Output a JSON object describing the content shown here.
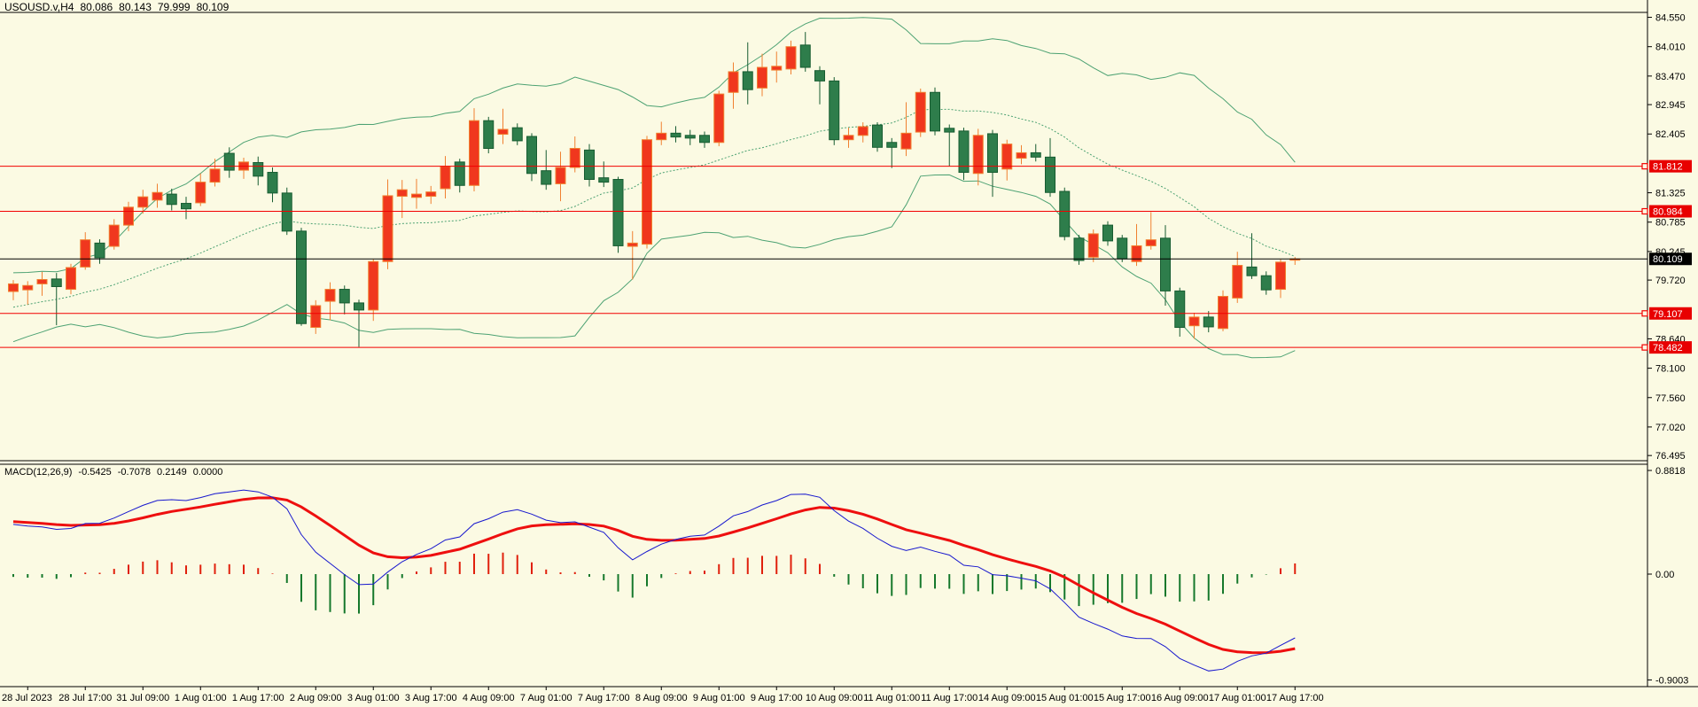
{
  "header": {
    "symbol": "USOUSD.v,H4",
    "open": "80.086",
    "high": "80.143",
    "low": "79.999",
    "close": "80.109"
  },
  "macd": {
    "name": "MACD(12,26,9)",
    "values": [
      "-0.5425",
      "-0.7078",
      "0.2149",
      "0.0000"
    ]
  },
  "colors": {
    "background": "#FBFAE3",
    "border": "#000000",
    "text": "#000000",
    "bull_fill": "#F0371E",
    "bull_border": "#F08030",
    "bear_fill": "#2E7D4B",
    "bear_border": "#175C31",
    "band_line": "#4DA273",
    "sr_line": "#F20000",
    "sr_badge_bg": "#E80000",
    "badge_text": "#FFFFFF",
    "current_line": "#000000",
    "current_badge_bg": "#000000",
    "macd_main": "#1818CE",
    "macd_signal": "#EE0F0F",
    "hist_positive": "#E0200C",
    "hist_negative": "#15782B"
  },
  "chart_data": {
    "type": "candlestick",
    "title": "USOUSD.v,H4  80.086 80.143 79.999 80.109",
    "symbol": "USOUSD.v",
    "timeframe": "H4",
    "current_bar": {
      "open": 80.086,
      "high": 80.143,
      "low": 79.999,
      "close": 80.109
    },
    "ohlc_format": [
      "open",
      "high",
      "low",
      "close"
    ],
    "price_axis": {
      "range": [
        76.4,
        84.64
      ],
      "ticks": [
        "84.550",
        "84.010",
        "83.470",
        "82.945",
        "82.405",
        "81.325",
        "80.785",
        "80.245",
        "79.720",
        "78.640",
        "78.100",
        "77.560",
        "77.020",
        "76.495"
      ],
      "tick_values": [
        84.55,
        84.01,
        83.47,
        82.945,
        82.405,
        81.325,
        80.785,
        80.245,
        79.72,
        78.64,
        78.1,
        77.56,
        77.02,
        76.495
      ]
    },
    "horizontal_lines": [
      {
        "value": 81.812,
        "label": "81.812",
        "kind": "sr"
      },
      {
        "value": 80.984,
        "label": "80.984",
        "kind": "sr"
      },
      {
        "value": 79.107,
        "label": "79.107",
        "kind": "sr"
      },
      {
        "value": 78.482,
        "label": "78.482",
        "kind": "sr"
      },
      {
        "value": 80.109,
        "label": "80.109",
        "kind": "current-price"
      }
    ],
    "bollinger": {
      "period": 20,
      "deviation": 2
    },
    "candles": [
      [
        79.51,
        79.72,
        79.35,
        79.65
      ],
      [
        79.54,
        79.7,
        79.27,
        79.62
      ],
      [
        79.65,
        79.87,
        79.43,
        79.73
      ],
      [
        79.74,
        79.85,
        78.89,
        79.6
      ],
      [
        79.55,
        80.02,
        79.46,
        79.95
      ],
      [
        79.96,
        80.6,
        79.91,
        80.46
      ],
      [
        80.4,
        80.47,
        80.02,
        80.13
      ],
      [
        80.34,
        80.84,
        80.28,
        80.73
      ],
      [
        80.73,
        81.16,
        80.62,
        81.06
      ],
      [
        81.06,
        81.38,
        80.94,
        81.25
      ],
      [
        81.19,
        81.49,
        81.05,
        81.33
      ],
      [
        81.3,
        81.4,
        81.0,
        81.11
      ],
      [
        81.13,
        81.25,
        80.84,
        81.03
      ],
      [
        81.14,
        81.68,
        81.08,
        81.52
      ],
      [
        81.52,
        81.95,
        81.44,
        81.76
      ],
      [
        82.05,
        82.16,
        81.6,
        81.74
      ],
      [
        81.74,
        81.97,
        81.58,
        81.89
      ],
      [
        81.88,
        81.99,
        81.46,
        81.63
      ],
      [
        81.7,
        81.79,
        81.15,
        81.32
      ],
      [
        81.32,
        81.42,
        80.55,
        80.62
      ],
      [
        80.62,
        80.68,
        78.88,
        78.92
      ],
      [
        78.85,
        79.35,
        78.73,
        79.25
      ],
      [
        79.33,
        79.68,
        78.98,
        79.55
      ],
      [
        79.55,
        79.62,
        79.09,
        79.3
      ],
      [
        79.3,
        79.36,
        78.49,
        79.17
      ],
      [
        79.17,
        80.1,
        78.97,
        80.06
      ],
      [
        80.06,
        81.57,
        79.92,
        81.27
      ],
      [
        81.26,
        81.56,
        80.86,
        81.38
      ],
      [
        81.24,
        81.58,
        81.03,
        81.3
      ],
      [
        81.26,
        81.45,
        81.12,
        81.34
      ],
      [
        81.4,
        82.0,
        81.22,
        81.81
      ],
      [
        81.89,
        81.95,
        81.33,
        81.46
      ],
      [
        81.46,
        82.88,
        81.35,
        82.65
      ],
      [
        82.65,
        82.72,
        82.05,
        82.14
      ],
      [
        82.4,
        82.87,
        82.22,
        82.49
      ],
      [
        82.52,
        82.6,
        82.2,
        82.28
      ],
      [
        82.36,
        82.42,
        81.54,
        81.68
      ],
      [
        81.73,
        82.11,
        81.38,
        81.48
      ],
      [
        81.49,
        82.08,
        81.17,
        81.79
      ],
      [
        81.79,
        82.36,
        81.7,
        82.14
      ],
      [
        82.11,
        82.22,
        81.44,
        81.57
      ],
      [
        81.6,
        81.9,
        81.43,
        81.52
      ],
      [
        81.57,
        81.62,
        80.22,
        80.35
      ],
      [
        80.34,
        80.62,
        79.73,
        80.4
      ],
      [
        80.38,
        82.37,
        80.3,
        82.3
      ],
      [
        82.3,
        82.63,
        82.2,
        82.42
      ],
      [
        82.42,
        82.55,
        82.25,
        82.35
      ],
      [
        82.38,
        82.48,
        82.2,
        82.33
      ],
      [
        82.38,
        82.45,
        82.15,
        82.25
      ],
      [
        82.25,
        83.2,
        82.18,
        83.14
      ],
      [
        83.17,
        83.72,
        82.87,
        83.55
      ],
      [
        83.55,
        84.09,
        82.95,
        83.22
      ],
      [
        83.25,
        83.88,
        83.1,
        83.63
      ],
      [
        83.58,
        83.92,
        83.35,
        83.65
      ],
      [
        83.6,
        84.12,
        83.5,
        84.01
      ],
      [
        84.04,
        84.28,
        83.55,
        83.63
      ],
      [
        83.57,
        83.65,
        82.95,
        83.38
      ],
      [
        83.38,
        83.45,
        82.2,
        82.3
      ],
      [
        82.3,
        82.52,
        82.15,
        82.38
      ],
      [
        82.38,
        82.62,
        82.25,
        82.54
      ],
      [
        82.57,
        82.62,
        82.08,
        82.16
      ],
      [
        82.25,
        82.33,
        81.78,
        82.16
      ],
      [
        82.13,
        82.99,
        82.0,
        82.42
      ],
      [
        82.44,
        83.24,
        82.35,
        83.17
      ],
      [
        83.17,
        83.26,
        82.38,
        82.46
      ],
      [
        82.51,
        82.58,
        81.81,
        82.44
      ],
      [
        82.46,
        82.52,
        81.56,
        81.7
      ],
      [
        81.68,
        82.5,
        81.46,
        82.38
      ],
      [
        82.41,
        82.48,
        81.25,
        81.7
      ],
      [
        81.76,
        82.3,
        81.55,
        82.22
      ],
      [
        81.96,
        82.2,
        81.85,
        82.06
      ],
      [
        82.06,
        82.22,
        81.9,
        81.98
      ],
      [
        81.98,
        82.33,
        81.25,
        81.33
      ],
      [
        81.35,
        81.42,
        80.45,
        80.52
      ],
      [
        80.49,
        80.55,
        80.0,
        80.08
      ],
      [
        80.14,
        80.65,
        80.05,
        80.57
      ],
      [
        80.73,
        80.8,
        80.35,
        80.44
      ],
      [
        80.49,
        80.55,
        80.05,
        80.11
      ],
      [
        80.06,
        80.75,
        79.98,
        80.35
      ],
      [
        80.35,
        80.97,
        80.28,
        80.46
      ],
      [
        80.49,
        80.73,
        79.25,
        79.52
      ],
      [
        79.52,
        79.58,
        78.68,
        78.85
      ],
      [
        78.88,
        79.12,
        78.64,
        79.04
      ],
      [
        79.04,
        79.15,
        78.76,
        78.86
      ],
      [
        78.83,
        79.53,
        78.78,
        79.42
      ],
      [
        79.39,
        80.24,
        79.3,
        79.99
      ],
      [
        79.96,
        80.58,
        79.74,
        79.8
      ],
      [
        79.8,
        79.88,
        79.45,
        79.54
      ],
      [
        79.55,
        80.1,
        79.39,
        80.05
      ],
      [
        80.086,
        80.143,
        79.999,
        80.109
      ]
    ],
    "time_labels": [
      "28 Jul 2023",
      "28 Jul 17:00",
      "31 Jul 09:00",
      "1 Aug 01:00",
      "1 Aug 17:00",
      "2 Aug 09:00",
      "3 Aug 01:00",
      "3 Aug 17:00",
      "4 Aug 09:00",
      "7 Aug 01:00",
      "7 Aug 17:00",
      "8 Aug 09:00",
      "9 Aug 01:00",
      "9 Aug 17:00",
      "10 Aug 09:00",
      "11 Aug 01:00",
      "11 Aug 17:00",
      "14 Aug 09:00",
      "15 Aug 01:00",
      "15 Aug 17:00",
      "16 Aug 09:00",
      "17 Aug 01:00",
      "17 Aug 17:00"
    ],
    "macd_panel": {
      "type": "macd",
      "label": "MACD(12,26,9)",
      "current_values": [
        "-0.5425",
        "-0.7078",
        "0.2149",
        "0.0000"
      ],
      "axis_ticks": [
        "0.8818",
        "0.00",
        "-0.9003"
      ],
      "axis_tick_values": [
        0.8818,
        0.0,
        -0.9003
      ],
      "range": [
        -0.95,
        0.935
      ],
      "histogram_rule": "red above zero, green below zero",
      "legend_position": "top-left"
    },
    "grid": "off"
  }
}
